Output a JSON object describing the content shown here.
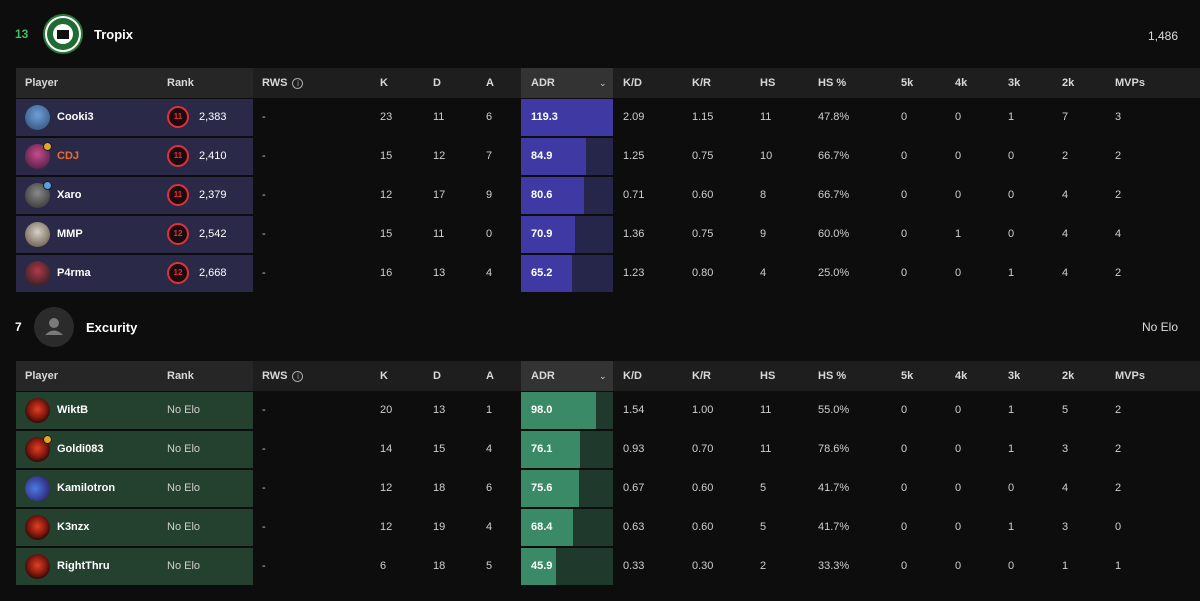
{
  "teams": [
    {
      "score": "13",
      "name": "Tropix",
      "elo": "1,486",
      "logo": "tropix-logo",
      "accent": "#3f3aa3",
      "columns": [
        "Player",
        "Rank",
        "RWS",
        "K",
        "D",
        "A",
        "ADR",
        "K/D",
        "K/R",
        "HS",
        "HS %",
        "5k",
        "4k",
        "3k",
        "2k",
        "MVPs"
      ],
      "players": [
        {
          "name": "Cooki3",
          "level": "11",
          "elo": "2,383",
          "rws": "-",
          "k": "23",
          "d": "11",
          "a": "6",
          "adr": "119.3",
          "kd": "2.09",
          "kr": "1.15",
          "hs": "11",
          "hsp": "47.8%",
          "k5": "0",
          "k4": "0",
          "k3": "1",
          "k2": "7",
          "mvps": "3",
          "adr_fill": 1.0
        },
        {
          "name": "CDJ",
          "level": "11",
          "elo": "2,410",
          "rws": "-",
          "k": "15",
          "d": "12",
          "a": "7",
          "adr": "84.9",
          "kd": "1.25",
          "kr": "0.75",
          "hs": "10",
          "hsp": "66.7%",
          "k5": "0",
          "k4": "0",
          "k3": "0",
          "k2": "2",
          "mvps": "2",
          "adr_fill": 0.71
        },
        {
          "name": "Xaro",
          "level": "11",
          "elo": "2,379",
          "rws": "-",
          "k": "12",
          "d": "17",
          "a": "9",
          "adr": "80.6",
          "kd": "0.71",
          "kr": "0.60",
          "hs": "8",
          "hsp": "66.7%",
          "k5": "0",
          "k4": "0",
          "k3": "0",
          "k2": "4",
          "mvps": "2",
          "adr_fill": 0.68
        },
        {
          "name": "MMP",
          "level": "12",
          "elo": "2,542",
          "rws": "-",
          "k": "15",
          "d": "11",
          "a": "0",
          "adr": "70.9",
          "kd": "1.36",
          "kr": "0.75",
          "hs": "9",
          "hsp": "60.0%",
          "k5": "0",
          "k4": "1",
          "k3": "0",
          "k2": "4",
          "mvps": "4",
          "adr_fill": 0.59
        },
        {
          "name": "P4rma",
          "level": "12",
          "elo": "2,668",
          "rws": "-",
          "k": "16",
          "d": "13",
          "a": "4",
          "adr": "65.2",
          "kd": "1.23",
          "kr": "0.80",
          "hs": "4",
          "hsp": "25.0%",
          "k5": "0",
          "k4": "0",
          "k3": "1",
          "k2": "4",
          "mvps": "2",
          "adr_fill": 0.55
        }
      ]
    },
    {
      "score": "7",
      "name": "Excurity",
      "elo": "No Elo",
      "logo": "default-team-avatar-icon",
      "accent": "#3a8a68",
      "columns": [
        "Player",
        "Rank",
        "RWS",
        "K",
        "D",
        "A",
        "ADR",
        "K/D",
        "K/R",
        "HS",
        "HS %",
        "5k",
        "4k",
        "3k",
        "2k",
        "MVPs"
      ],
      "players": [
        {
          "name": "WiktB",
          "rank": "No Elo",
          "rws": "-",
          "k": "20",
          "d": "13",
          "a": "1",
          "adr": "98.0",
          "kd": "1.54",
          "kr": "1.00",
          "hs": "11",
          "hsp": "55.0%",
          "k5": "0",
          "k4": "0",
          "k3": "1",
          "k2": "5",
          "mvps": "2",
          "adr_fill": 0.82
        },
        {
          "name": "Goldi083",
          "rank": "No Elo",
          "rws": "-",
          "k": "14",
          "d": "15",
          "a": "4",
          "adr": "76.1",
          "kd": "0.93",
          "kr": "0.70",
          "hs": "11",
          "hsp": "78.6%",
          "k5": "0",
          "k4": "0",
          "k3": "1",
          "k2": "3",
          "mvps": "2",
          "adr_fill": 0.64
        },
        {
          "name": "Kamilotron",
          "rank": "No Elo",
          "rws": "-",
          "k": "12",
          "d": "18",
          "a": "6",
          "adr": "75.6",
          "kd": "0.67",
          "kr": "0.60",
          "hs": "5",
          "hsp": "41.7%",
          "k5": "0",
          "k4": "0",
          "k3": "0",
          "k2": "4",
          "mvps": "2",
          "adr_fill": 0.63
        },
        {
          "name": "K3nzx",
          "rank": "No Elo",
          "rws": "-",
          "k": "12",
          "d": "19",
          "a": "4",
          "adr": "68.4",
          "kd": "0.63",
          "kr": "0.60",
          "hs": "5",
          "hsp": "41.7%",
          "k5": "0",
          "k4": "0",
          "k3": "1",
          "k2": "3",
          "mvps": "0",
          "adr_fill": 0.57
        },
        {
          "name": "RightThru",
          "rank": "No Elo",
          "rws": "-",
          "k": "6",
          "d": "18",
          "a": "5",
          "adr": "45.9",
          "kd": "0.33",
          "kr": "0.30",
          "hs": "2",
          "hsp": "33.3%",
          "k5": "0",
          "k4": "0",
          "k3": "0",
          "k2": "1",
          "mvps": "1",
          "adr_fill": 0.38
        }
      ]
    }
  ]
}
